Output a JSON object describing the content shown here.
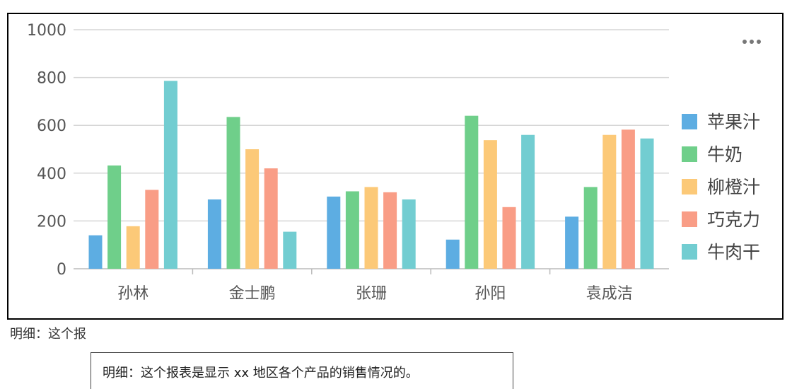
{
  "chart_data": {
    "type": "bar",
    "categories": [
      "孙林",
      "金士鹏",
      "张珊",
      "孙阳",
      "袁成洁"
    ],
    "series": [
      {
        "name": "苹果汁",
        "color": "#5dade2",
        "values": [
          140,
          290,
          302,
          122,
          218
        ]
      },
      {
        "name": "牛奶",
        "color": "#6fcf8a",
        "values": [
          432,
          635,
          324,
          640,
          342
        ]
      },
      {
        "name": "柳橙汁",
        "color": "#fcc978",
        "values": [
          178,
          500,
          342,
          538,
          560
        ]
      },
      {
        "name": "巧克力",
        "color": "#f99d86",
        "values": [
          330,
          420,
          320,
          258,
          582
        ]
      },
      {
        "name": "牛肉干",
        "color": "#72cdd1",
        "values": [
          786,
          155,
          290,
          560,
          545
        ]
      }
    ],
    "yticks": [
      "0",
      "200",
      "400",
      "600",
      "800",
      "1000"
    ],
    "ylim": [
      0,
      1000
    ],
    "grid": true,
    "legend": "right"
  },
  "toolbar": {
    "more_icon": "more-icon"
  },
  "notes": {
    "short": "明细：这个报",
    "full": "明细：这个报表是显示 xx 地区各个产品的销售情况的。"
  }
}
